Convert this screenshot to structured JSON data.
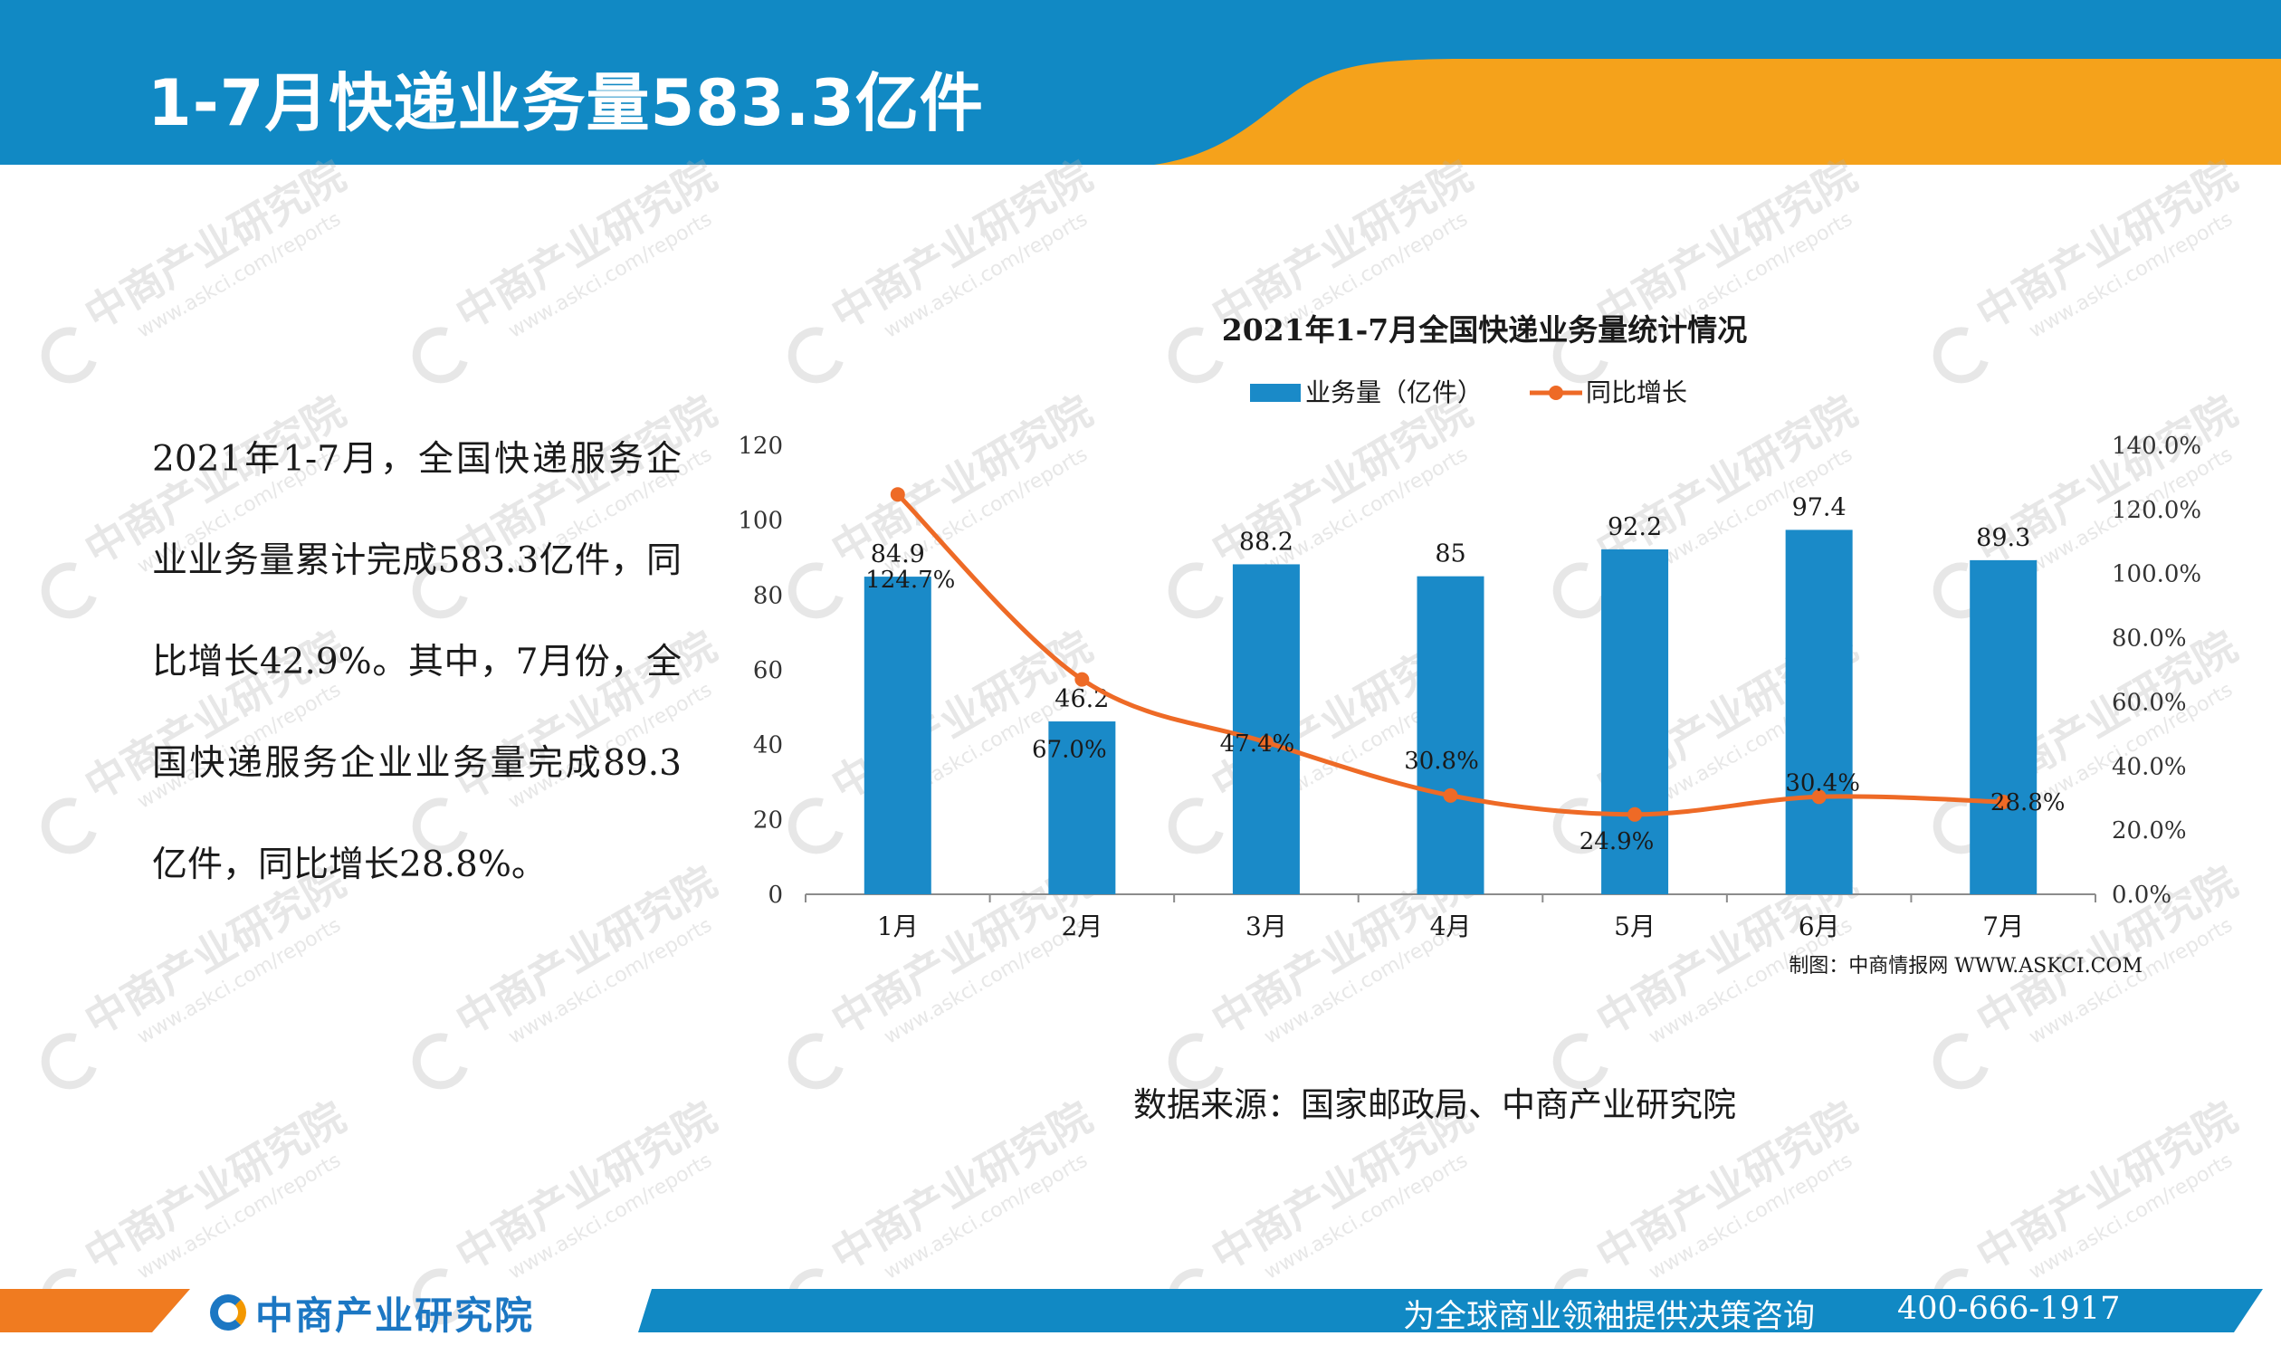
{
  "header": {
    "title": "1-7月快递业务量583.3亿件",
    "colors": {
      "blue": "#1189c4",
      "orange": "#f5a21b"
    }
  },
  "body_text": "2021年1-7月，全国快递服务企业业务量累计完成583.3亿件，同比增长42.9%。其中，7月份，全国快递服务企业业务量完成89.3亿件，同比增长28.8%。",
  "chart_data": {
    "type": "bar",
    "title": "2021年1-7月全国快递业务量统计情况",
    "categories": [
      "1月",
      "2月",
      "3月",
      "4月",
      "5月",
      "6月",
      "7月"
    ],
    "series": [
      {
        "name": "业务量（亿件）",
        "type": "bar",
        "axis": "left",
        "color": "#1a8ac8",
        "values": [
          84.9,
          46.2,
          88.2,
          85,
          92.2,
          97.4,
          89.3
        ],
        "labels": [
          "84.9",
          "46.2",
          "88.2",
          "85",
          "92.2",
          "97.4",
          "89.3"
        ]
      },
      {
        "name": "同比增长",
        "type": "line",
        "axis": "right",
        "color": "#ee6a26",
        "values": [
          124.7,
          67.0,
          47.4,
          30.8,
          24.9,
          30.4,
          28.8
        ],
        "labels": [
          "124.7%",
          "67.0%",
          "47.4%",
          "30.8%",
          "24.9%",
          "30.4%",
          "28.8%"
        ]
      }
    ],
    "y_left": {
      "min": 0,
      "max": 120,
      "ticks": [
        "0",
        "20",
        "40",
        "60",
        "80",
        "100",
        "120"
      ]
    },
    "y_right": {
      "min": 0,
      "max": 140,
      "ticks": [
        "0.0%",
        "20.0%",
        "40.0%",
        "60.0%",
        "80.0%",
        "100.0%",
        "120.0%",
        "140.0%"
      ]
    },
    "legend_position": "top",
    "grid": false,
    "credit": "制图：中商情报网 WWW.ASKCI.COM"
  },
  "source": "数据来源：国家邮政局、中商产业研究院",
  "watermark": {
    "cn": "中商产业研究院",
    "en": "www.askci.com/reports"
  },
  "footer": {
    "logo_text": "中商产业研究院",
    "slogan": "为全球商业领袖提供决策咨询",
    "phone": "400-666-1917"
  }
}
